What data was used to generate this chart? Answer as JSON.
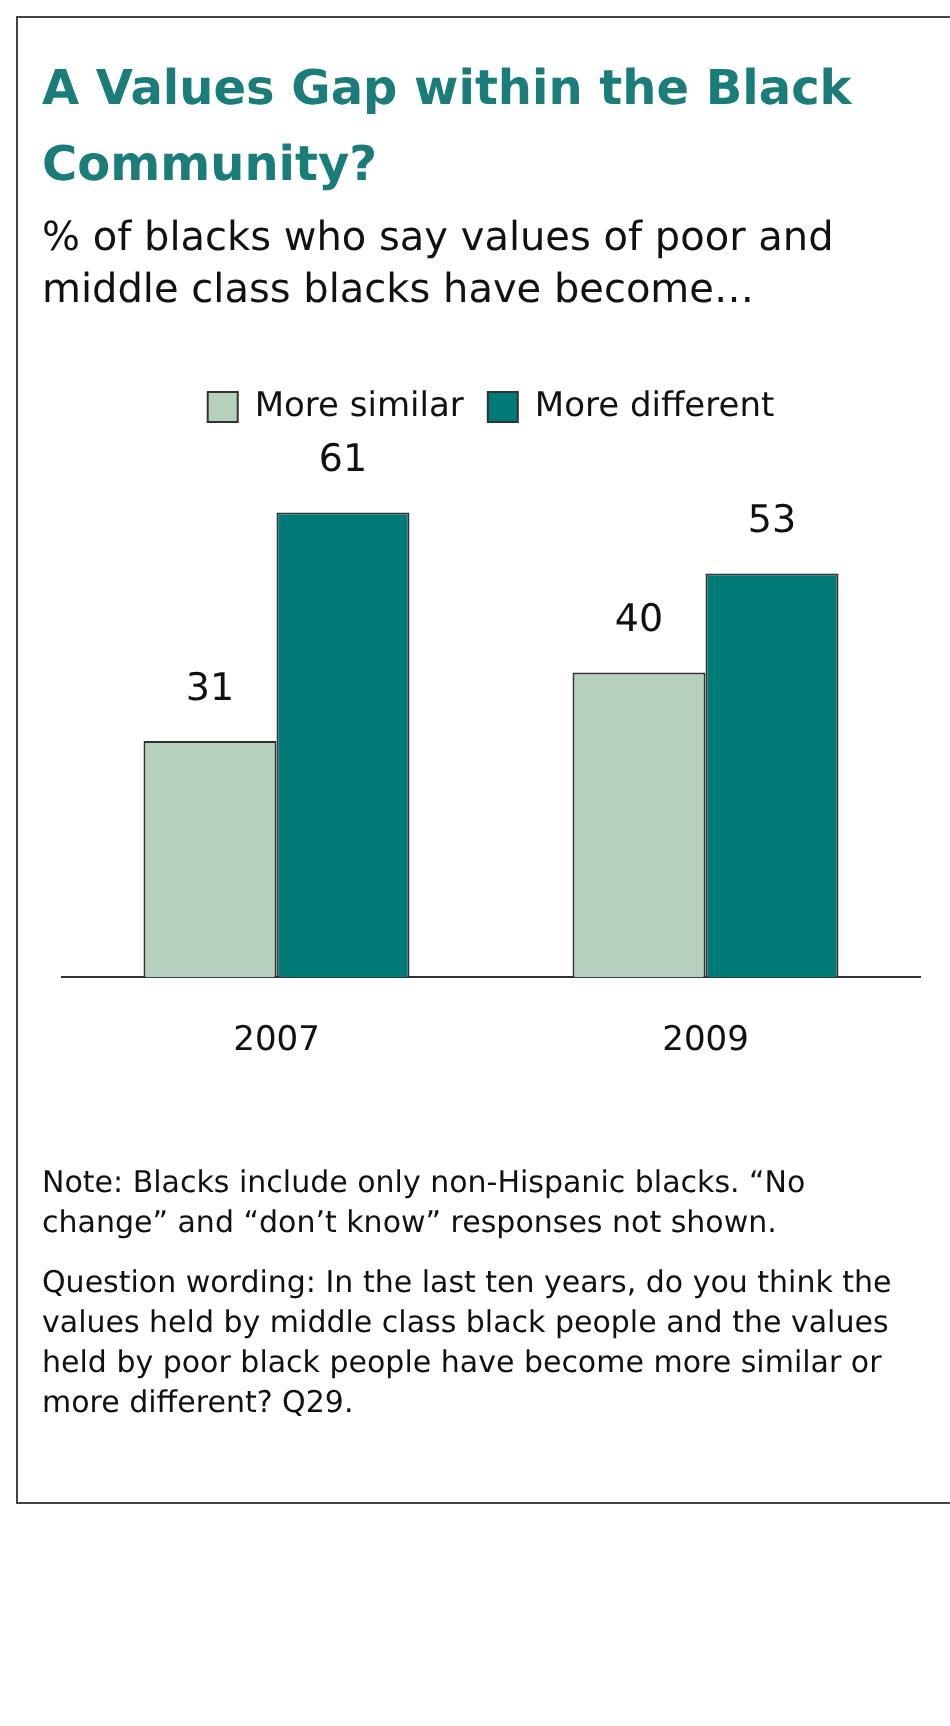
{
  "chart_data": {
    "type": "bar",
    "title": "A Values Gap within the Black Community?",
    "subtitle": "% of blacks who say values of poor and middle class blacks have become…",
    "categories": [
      "2007",
      "2009"
    ],
    "series": [
      {
        "name": "More similar",
        "color": "#b5d0bd",
        "values": [
          31,
          40
        ]
      },
      {
        "name": "More different",
        "color": "#007b78",
        "values": [
          61,
          53
        ]
      }
    ],
    "data_labels": true,
    "legend": "top",
    "grid": false,
    "annotations": [
      "Note: Blacks include only non-Hispanic blacks. “No change” and “don’t know” responses not shown.",
      "Question wording: In the last ten years, do you think the values held by middle class black people and the values held by poor black people have become more similar or more different? Q29."
    ]
  }
}
